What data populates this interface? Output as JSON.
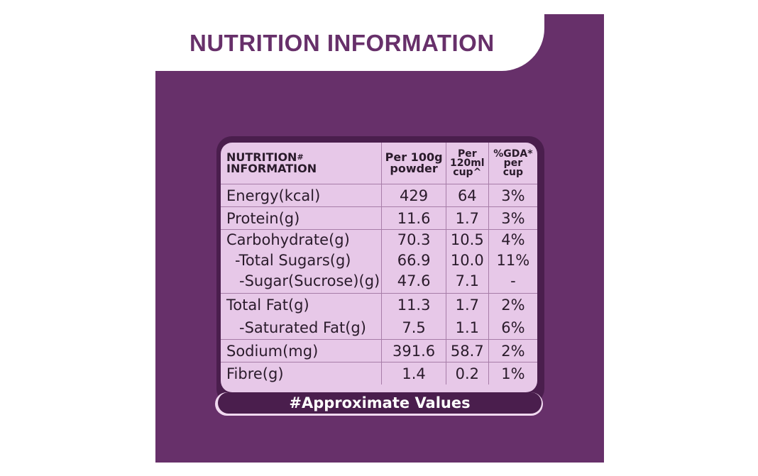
{
  "title": "NUTRITION INFORMATION",
  "table": {
    "header": {
      "col1_line1": "NUTRITION",
      "col1_sup": "#",
      "col1_line2": "INFORMATION",
      "col2_line1": "Per 100g",
      "col2_line2": "powder",
      "col3_line1": "Per",
      "col3_line2": "120ml",
      "col3_line3": "cup^",
      "col4_line1": "%GDA*",
      "col4_line2": "per",
      "col4_line3": "cup"
    },
    "rows": [
      {
        "label": "Energy(kcal)",
        "per100g": "429",
        "percup": "64",
        "gda": "3%"
      },
      {
        "label": "Protein(g)",
        "per100g": "11.6",
        "percup": "1.7",
        "gda": "3%"
      },
      {
        "label": "Carbohydrate(g)",
        "per100g": "70.3",
        "percup": "10.5",
        "gda": "4%"
      },
      {
        "label": "-Total Sugars(g)",
        "per100g": "66.9",
        "percup": "10.0",
        "gda": "11%"
      },
      {
        "label": "-Sugar(Sucrose)(g)",
        "per100g": "47.6",
        "percup": "7.1",
        "gda": "-"
      },
      {
        "label": "Total Fat(g)",
        "per100g": "11.3",
        "percup": "1.7",
        "gda": "2%"
      },
      {
        "label": "-Saturated Fat(g)",
        "per100g": "7.5",
        "percup": "1.1",
        "gda": "6%"
      },
      {
        "label": "Sodium(mg)",
        "per100g": "391.6",
        "percup": "58.7",
        "gda": "2%"
      },
      {
        "label": "Fibre(g)",
        "per100g": "1.4",
        "percup": "0.2",
        "gda": "1%"
      }
    ]
  },
  "footer": "#Approximate Values",
  "colors": {
    "purple": "#67306a",
    "dark_purple": "#4a1e4d",
    "lilac": "#e7c8e8"
  }
}
